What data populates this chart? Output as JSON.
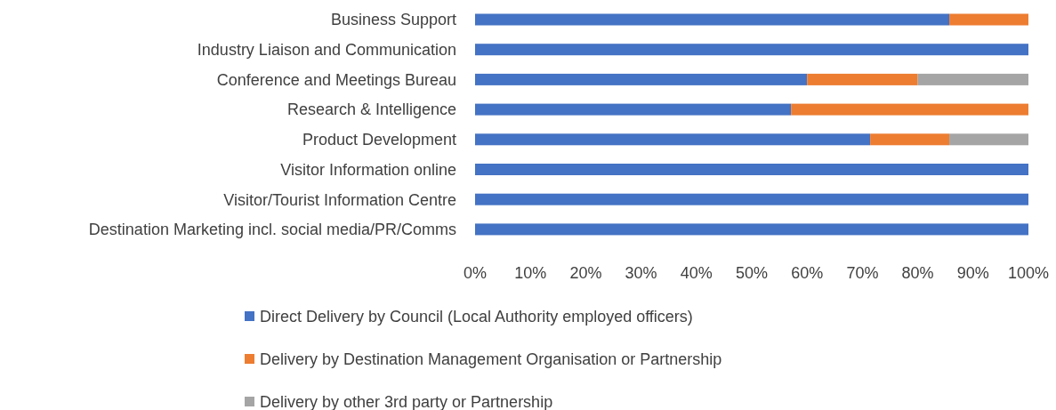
{
  "chart_data": {
    "type": "bar",
    "orientation": "horizontal",
    "stacked": true,
    "categories": [
      "Business Support",
      "Industry Liaison and Communication",
      "Conference and Meetings Bureau",
      "Research & Intelligence",
      "Product Development",
      "Visitor Information online",
      "Visitor/Tourist Information Centre",
      "Destination Marketing incl. social media/PR/Comms"
    ],
    "series": [
      {
        "name": "Direct Delivery by Council (Local Authority employed officers)",
        "color": "#4472c4",
        "values": [
          85.7,
          100,
          60,
          57.1,
          71.4,
          100,
          100,
          100
        ]
      },
      {
        "name": "Delivery by Destination Management Organisation or Partnership",
        "color": "#ed7d31",
        "values": [
          14.3,
          0,
          20,
          42.9,
          14.3,
          0,
          0,
          0
        ]
      },
      {
        "name": "Delivery by other 3rd party or Partnership",
        "color": "#a5a5a5",
        "values": [
          0,
          0,
          20,
          0,
          14.3,
          0,
          0,
          0
        ]
      }
    ],
    "xlim": [
      0,
      100
    ],
    "xticks": [
      {
        "value": 0,
        "label": "0%"
      },
      {
        "value": 10,
        "label": "10%"
      },
      {
        "value": 20,
        "label": "20%"
      },
      {
        "value": 30,
        "label": "30%"
      },
      {
        "value": 40,
        "label": "40%"
      },
      {
        "value": 50,
        "label": "50%"
      },
      {
        "value": 60,
        "label": "60%"
      },
      {
        "value": 70,
        "label": "70%"
      },
      {
        "value": 80,
        "label": "80%"
      },
      {
        "value": 90,
        "label": "90%"
      },
      {
        "value": 100,
        "label": "100%"
      }
    ],
    "grid": false,
    "legend": "bottom"
  }
}
